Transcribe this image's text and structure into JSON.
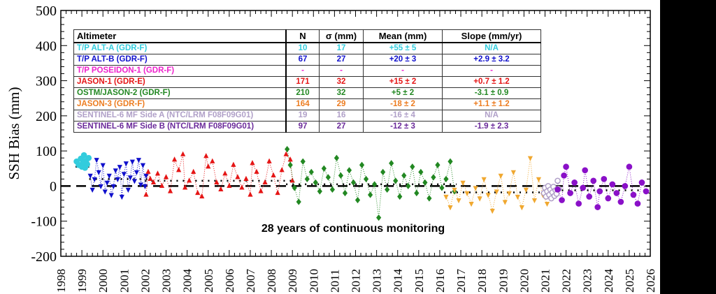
{
  "chart_data": {
    "type": "scatter",
    "title": "",
    "xlabel": "",
    "ylabel": "SSH Bias (mm)",
    "xlim": [
      1998,
      2026
    ],
    "ylim": [
      -200,
      500
    ],
    "xticks": [
      "1998",
      "1999",
      "2000",
      "2001",
      "2002",
      "2003",
      "2004",
      "2005",
      "2006",
      "2007",
      "2008",
      "2009",
      "2010",
      "2011",
      "2012",
      "2013",
      "2014",
      "2015",
      "2016",
      "2017",
      "2018",
      "2019",
      "2020",
      "2021",
      "2022",
      "2023",
      "2024",
      "2025",
      "2026"
    ],
    "yticks": [
      "500",
      "400",
      "300",
      "200",
      "100",
      "0",
      "-100",
      "-200"
    ],
    "grid": false,
    "annotation": "28 years of continuous monitoring",
    "zero_line": {
      "y": 0,
      "style": "dashed"
    },
    "series": [
      {
        "name": "T/P ALT-A (GDR-F)",
        "color": "#33ccdd",
        "marker": "circle",
        "mean": 55,
        "span": [
          1998.7,
          1999.35
        ],
        "points": [
          [
            1998.75,
            70
          ],
          [
            1998.85,
            60
          ],
          [
            1998.95,
            78
          ],
          [
            1999.0,
            55
          ],
          [
            1999.05,
            66
          ],
          [
            1999.1,
            88
          ],
          [
            1999.15,
            52
          ],
          [
            1999.2,
            72
          ],
          [
            1999.25,
            62
          ],
          [
            1999.32,
            80
          ]
        ]
      },
      {
        "name": "T/P ALT-B (GDR-F)",
        "color": "#1010cc",
        "marker": "triangle-down",
        "mean": 20,
        "span": [
          1999.35,
          2002.1
        ],
        "points": [
          [
            1999.4,
            30
          ],
          [
            1999.5,
            -10
          ],
          [
            1999.6,
            20
          ],
          [
            1999.7,
            75
          ],
          [
            1999.8,
            40
          ],
          [
            1999.9,
            0
          ],
          [
            2000.0,
            60
          ],
          [
            2000.1,
            -15
          ],
          [
            2000.2,
            10
          ],
          [
            2000.3,
            30
          ],
          [
            2000.4,
            -25
          ],
          [
            2000.5,
            0
          ],
          [
            2000.6,
            45
          ],
          [
            2000.7,
            20
          ],
          [
            2000.8,
            55
          ],
          [
            2000.9,
            -30
          ],
          [
            2001.0,
            35
          ],
          [
            2001.1,
            65
          ],
          [
            2001.2,
            -10
          ],
          [
            2001.3,
            25
          ],
          [
            2001.4,
            70
          ],
          [
            2001.5,
            15
          ],
          [
            2001.6,
            40
          ],
          [
            2001.7,
            75
          ],
          [
            2001.8,
            5
          ],
          [
            2001.9,
            60
          ],
          [
            2002.0,
            0
          ],
          [
            2002.05,
            30
          ]
        ]
      },
      {
        "name": "T/P POSEIDON-1 (GDR-F)",
        "color": "#ee22cc",
        "marker": "triangle-up",
        "mean": null,
        "span": null,
        "points": []
      },
      {
        "name": "JASON-1 (GDR-E)",
        "color": "#e51515",
        "marker": "triangle-up",
        "mean": 15,
        "span": [
          2002.0,
          2009.1
        ],
        "points": [
          [
            2002.05,
            -25
          ],
          [
            2002.15,
            40
          ],
          [
            2002.25,
            20
          ],
          [
            2002.4,
            10
          ],
          [
            2002.6,
            35
          ],
          [
            2002.8,
            0
          ],
          [
            2003.0,
            25
          ],
          [
            2003.2,
            -15
          ],
          [
            2003.4,
            75
          ],
          [
            2003.6,
            45
          ],
          [
            2003.8,
            90
          ],
          [
            2003.9,
            -5
          ],
          [
            2004.1,
            15
          ],
          [
            2004.3,
            40
          ],
          [
            2004.5,
            -20
          ],
          [
            2004.7,
            -30
          ],
          [
            2004.9,
            85
          ],
          [
            2005.0,
            55
          ],
          [
            2005.2,
            70
          ],
          [
            2005.4,
            10
          ],
          [
            2005.6,
            -10
          ],
          [
            2005.8,
            35
          ],
          [
            2006.0,
            0
          ],
          [
            2006.2,
            60
          ],
          [
            2006.4,
            25
          ],
          [
            2006.6,
            -5
          ],
          [
            2006.8,
            20
          ],
          [
            2007.0,
            -25
          ],
          [
            2007.1,
            65
          ],
          [
            2007.3,
            40
          ],
          [
            2007.5,
            -15
          ],
          [
            2007.7,
            10
          ],
          [
            2007.9,
            70
          ],
          [
            2008.1,
            30
          ],
          [
            2008.3,
            -20
          ],
          [
            2008.5,
            45
          ],
          [
            2008.7,
            90
          ],
          [
            2008.9,
            75
          ],
          [
            2009.0,
            15
          ]
        ]
      },
      {
        "name": "OSTM/JASON-2 (GDR-F)",
        "color": "#228822",
        "marker": "diamond",
        "mean": 5,
        "span": [
          2008.7,
          2016.8
        ],
        "points": [
          [
            2008.75,
            105
          ],
          [
            2008.9,
            60
          ],
          [
            2009.1,
            -5
          ],
          [
            2009.3,
            -45
          ],
          [
            2009.5,
            70
          ],
          [
            2009.7,
            20
          ],
          [
            2009.9,
            40
          ],
          [
            2010.1,
            10
          ],
          [
            2010.3,
            -15
          ],
          [
            2010.5,
            50
          ],
          [
            2010.7,
            25
          ],
          [
            2010.9,
            -10
          ],
          [
            2011.1,
            80
          ],
          [
            2011.3,
            30
          ],
          [
            2011.5,
            -20
          ],
          [
            2011.7,
            45
          ],
          [
            2011.9,
            10
          ],
          [
            2012.1,
            -40
          ],
          [
            2012.3,
            60
          ],
          [
            2012.5,
            20
          ],
          [
            2012.7,
            -25
          ],
          [
            2012.9,
            5
          ],
          [
            2013.1,
            -90
          ],
          [
            2013.3,
            40
          ],
          [
            2013.5,
            -10
          ],
          [
            2013.7,
            65
          ],
          [
            2013.9,
            15
          ],
          [
            2014.1,
            -30
          ],
          [
            2014.3,
            30
          ],
          [
            2014.5,
            0
          ],
          [
            2014.7,
            55
          ],
          [
            2014.9,
            -20
          ],
          [
            2015.1,
            40
          ],
          [
            2015.3,
            10
          ],
          [
            2015.5,
            -35
          ],
          [
            2015.7,
            25
          ],
          [
            2015.9,
            60
          ],
          [
            2016.1,
            -5
          ],
          [
            2016.3,
            20
          ],
          [
            2016.5,
            70
          ],
          [
            2016.7,
            -15
          ]
        ]
      },
      {
        "name": "JASON-3 (GDR-F)",
        "color": "#f0a830",
        "marker": "triangle-down",
        "mean": -18,
        "span": [
          2016.2,
          2021.3
        ],
        "points": [
          [
            2016.3,
            -30
          ],
          [
            2016.5,
            -60
          ],
          [
            2016.7,
            -10
          ],
          [
            2016.9,
            -40
          ],
          [
            2017.1,
            10
          ],
          [
            2017.3,
            -20
          ],
          [
            2017.5,
            -50
          ],
          [
            2017.7,
            -5
          ],
          [
            2017.9,
            -35
          ],
          [
            2018.1,
            20
          ],
          [
            2018.3,
            -25
          ],
          [
            2018.5,
            -70
          ],
          [
            2018.7,
            -15
          ],
          [
            2018.9,
            30
          ],
          [
            2019.1,
            -45
          ],
          [
            2019.3,
            -20
          ],
          [
            2019.5,
            40
          ],
          [
            2019.7,
            -30
          ],
          [
            2019.9,
            -60
          ],
          [
            2020.1,
            -10
          ],
          [
            2020.3,
            80
          ],
          [
            2020.5,
            -40
          ],
          [
            2020.7,
            20
          ],
          [
            2020.9,
            -25
          ],
          [
            2021.1,
            -50
          ]
        ]
      },
      {
        "name": "SENTINEL-6 MF Side A (NTC/LRM F08F09G01)",
        "color": "#b0a0c8",
        "marker": "circle-open",
        "mean": -16,
        "span": [
          2020.9,
          2021.7
        ],
        "points": [
          [
            2020.95,
            -20
          ],
          [
            2021.0,
            -5
          ],
          [
            2021.05,
            -30
          ],
          [
            2021.1,
            -15
          ],
          [
            2021.15,
            0
          ],
          [
            2021.2,
            -25
          ],
          [
            2021.25,
            -10
          ],
          [
            2021.3,
            -35
          ],
          [
            2021.35,
            -18
          ],
          [
            2021.4,
            -2
          ],
          [
            2021.45,
            -28
          ],
          [
            2021.5,
            -12
          ],
          [
            2021.55,
            -22
          ],
          [
            2021.6,
            15
          ],
          [
            2021.65,
            -8
          ]
        ]
      },
      {
        "name": "SENTINEL-6 MF Side B (NTC/LRM F08F09G01)",
        "color": "#8a10c8",
        "marker": "circle",
        "mean": -12,
        "span": [
          2021.5,
          2025.9
        ],
        "points": [
          [
            2021.6,
            -10
          ],
          [
            2021.8,
            -40
          ],
          [
            2021.9,
            30
          ],
          [
            2022.0,
            55
          ],
          [
            2022.2,
            -20
          ],
          [
            2022.4,
            10
          ],
          [
            2022.6,
            -50
          ],
          [
            2022.8,
            -5
          ],
          [
            2022.9,
            45
          ],
          [
            2023.1,
            -30
          ],
          [
            2023.3,
            15
          ],
          [
            2023.5,
            -60
          ],
          [
            2023.6,
            -15
          ],
          [
            2023.8,
            20
          ],
          [
            2024.0,
            -35
          ],
          [
            2024.2,
            5
          ],
          [
            2024.4,
            -20
          ],
          [
            2024.6,
            -45
          ],
          [
            2024.8,
            0
          ],
          [
            2025.0,
            55
          ],
          [
            2025.2,
            -25
          ],
          [
            2025.4,
            -50
          ],
          [
            2025.6,
            10
          ],
          [
            2025.8,
            -15
          ]
        ]
      }
    ],
    "table": {
      "headers": [
        "Altimeter",
        "N",
        "σ (mm)",
        "Mean (mm)",
        "Slope (mm/yr)"
      ],
      "rows": [
        {
          "color": "#33ccdd",
          "cells": [
            "T/P ALT-A (GDR-F)",
            "10",
            "17",
            "+55 ± 5",
            "N/A"
          ]
        },
        {
          "color": "#1010cc",
          "cells": [
            "T/P ALT-B (GDR-F)",
            "67",
            "27",
            "+20 ± 3",
            "+2.9 ± 3.2"
          ]
        },
        {
          "color": "#ee22cc",
          "cells": [
            "T/P POSEIDON-1 (GDR-F)",
            "-",
            "-",
            "-",
            "-"
          ]
        },
        {
          "color": "#e51515",
          "cells": [
            "JASON-1 (GDR-E)",
            "171",
            "32",
            "+15 ± 2",
            "+0.7 ± 1.2"
          ]
        },
        {
          "color": "#228822",
          "cells": [
            "OSTM/JASON-2 (GDR-F)",
            "210",
            "32",
            "+5 ± 2",
            "-3.1 ± 0.9"
          ]
        },
        {
          "color": "#ec7c20",
          "cells": [
            "JASON-3 (GDR-F)",
            "164",
            "29",
            "-18 ± 2",
            "+1.1 ± 1.2"
          ]
        },
        {
          "color": "#b0a0c8",
          "cells": [
            "SENTINEL-6 MF Side A (NTC/LRM F08F09G01)",
            "19",
            "16",
            "-16 ± 4",
            "N/A"
          ]
        },
        {
          "color": "#6a2a9a",
          "cells": [
            "SENTINEL-6 MF Side B (NTC/LRM F08F09G01)",
            "97",
            "27",
            "-12 ± 3",
            "-1.9 ± 2.3"
          ]
        }
      ]
    }
  }
}
